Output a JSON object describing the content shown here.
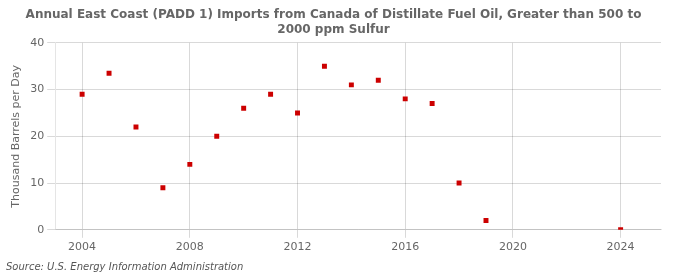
{
  "chart_data": {
    "type": "scatter",
    "title": "Annual East Coast (PADD 1) Imports from Canada of Distillate Fuel Oil, Greater than 500 to\n2000 ppm Sulfur",
    "y_label": "Thousand Barrels per Day",
    "annotations": [
      "Source: U.S. Energy Information Administration"
    ],
    "x": [
      2004,
      2005,
      2006,
      2007,
      2008,
      2009,
      2010,
      2011,
      2012,
      2013,
      2014,
      2015,
      2016,
      2017,
      2018,
      2019,
      2024
    ],
    "values": [
      29.0,
      33.5,
      22.0,
      9.0,
      14.0,
      20.0,
      26.0,
      29.0,
      25.0,
      35.0,
      31.0,
      32.0,
      28.0,
      27.0,
      10.0,
      2.0,
      0.0
    ],
    "color": "#cc0000",
    "marker": "square",
    "xlim": [
      2003,
      2025.5
    ],
    "xticks": [
      2004,
      2008,
      2012,
      2016,
      2020,
      2024
    ],
    "ylim": [
      0,
      40
    ],
    "yticks": [
      0,
      10,
      20,
      30,
      40
    ],
    "grid": true,
    "legend": false
  }
}
